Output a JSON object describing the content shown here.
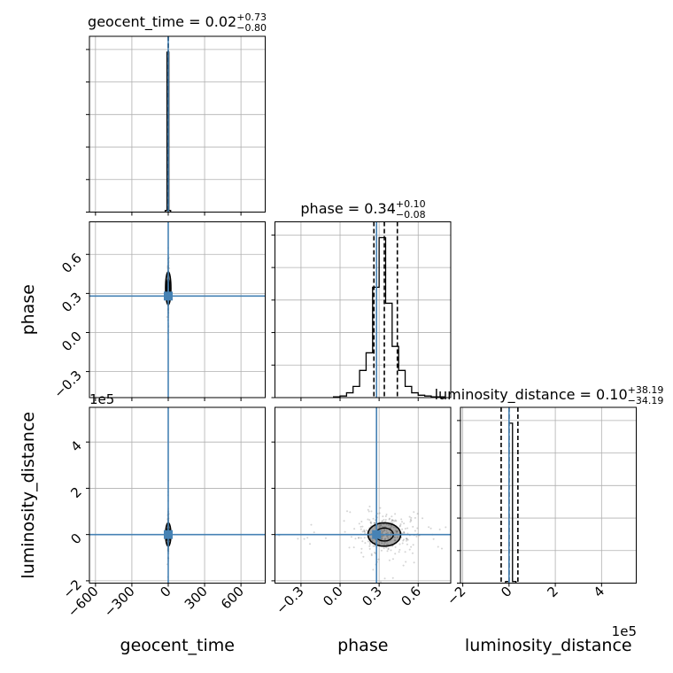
{
  "chart_data": {
    "type": "corner",
    "parameters": [
      "geocent_time",
      "phase",
      "luminosity_distance"
    ],
    "axis_labels": {
      "geocent_time": "geocent_time",
      "phase": "phase",
      "luminosity_distance": "luminosity_distance"
    },
    "diagonal_titles": [
      {
        "param": "geocent_time",
        "text": "geocent_time = 0.02",
        "plus": "+0.73",
        "minus": "−0.80"
      },
      {
        "param": "phase",
        "text": "phase = 0.34",
        "plus": "+0.10",
        "minus": "−0.08"
      },
      {
        "param": "luminosity_distance",
        "text": "luminosity_distance = 0.10",
        "plus": "+38.19",
        "minus": "−34.19"
      }
    ],
    "ranges": {
      "geocent_time": [
        -650,
        800
      ],
      "phase": [
        -0.5,
        0.85
      ],
      "luminosity_distance": [
        -210000,
        550000
      ]
    },
    "ticks": {
      "geocent_time": {
        "values": [
          -600,
          -300,
          0,
          300,
          600
        ],
        "labels": [
          "−600",
          "−300",
          "0",
          "300",
          "600"
        ]
      },
      "phase": {
        "values": [
          -0.3,
          0.0,
          0.3,
          0.6
        ],
        "labels": [
          "−0.3",
          "0.0",
          "0.3",
          "0.6"
        ]
      },
      "luminosity_distance": {
        "values": [
          -200000,
          0,
          200000,
          400000
        ],
        "labels": [
          "−2",
          "0",
          "2",
          "4"
        ]
      }
    },
    "offset_text": {
      "luminosity_distance": "1e5"
    },
    "truths": {
      "geocent_time": 0,
      "phase": 0.28,
      "luminosity_distance": 0
    },
    "quantiles": {
      "geocent_time": [
        -0.78,
        0.02,
        0.75
      ],
      "phase": [
        0.26,
        0.34,
        0.44
      ],
      "luminosity_distance": [
        -34090,
        100,
        38290
      ]
    },
    "histograms": {
      "geocent_time": {
        "edges": [
          -25,
          -10,
          5,
          20
        ],
        "counts": [
          0.01,
          1.0,
          0.01
        ]
      },
      "phase": {
        "edges": [
          -0.05,
          0.0,
          0.05,
          0.1,
          0.15,
          0.2,
          0.25,
          0.3,
          0.35,
          0.4,
          0.45,
          0.5,
          0.55,
          0.6,
          0.65,
          0.7,
          0.75,
          0.8
        ],
        "counts": [
          0.005,
          0.01,
          0.03,
          0.07,
          0.17,
          0.28,
          0.69,
          1.0,
          0.59,
          0.32,
          0.17,
          0.07,
          0.03,
          0.015,
          0.01,
          0.005,
          0.005
        ]
      },
      "luminosity_distance": {
        "edges": [
          -15000,
          0,
          15000,
          30000
        ],
        "counts": [
          0.01,
          1.0,
          0.01
        ]
      }
    },
    "grid": true
  }
}
